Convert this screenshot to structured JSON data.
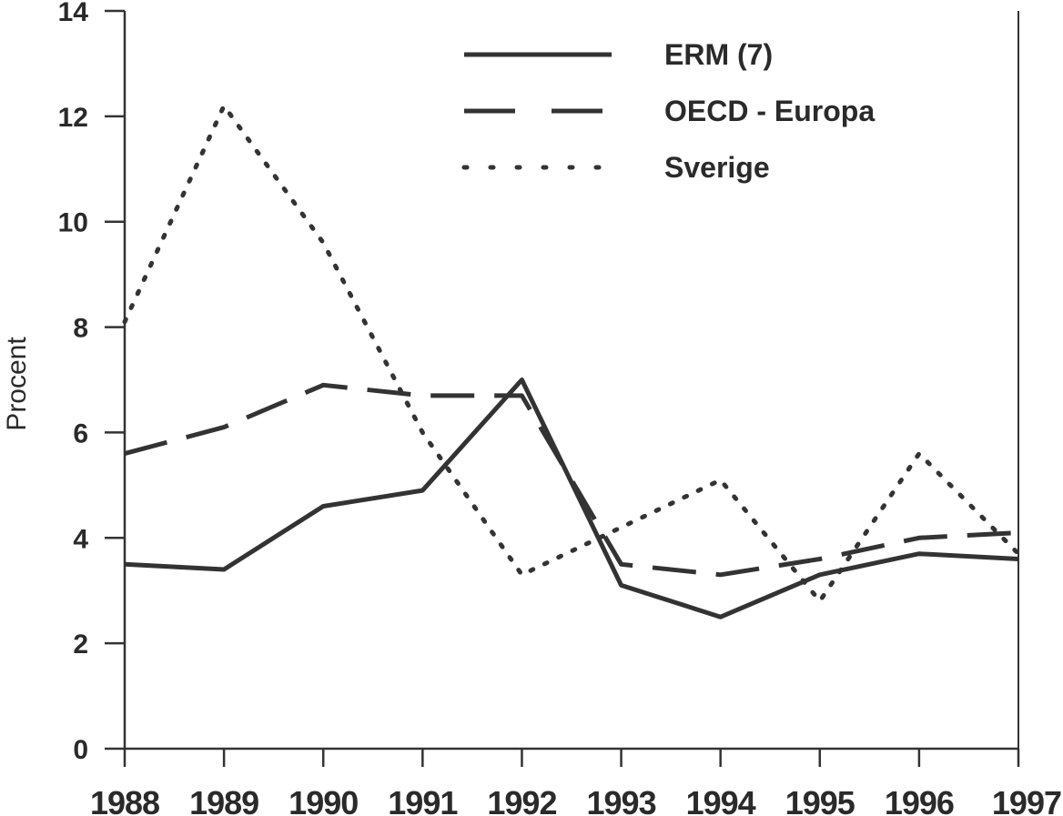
{
  "chart_data": {
    "type": "line",
    "title": "",
    "xlabel": "",
    "ylabel": "Procent",
    "ylim": [
      0,
      14
    ],
    "yticks": [
      "0",
      "2",
      "4",
      "6",
      "8",
      "10",
      "12",
      "14"
    ],
    "x": [
      "1988",
      "1989",
      "1990",
      "1991",
      "1992",
      "1993",
      "1994",
      "1995",
      "1996",
      "1997"
    ],
    "series": [
      {
        "name": "ERM (7)",
        "style": "solid",
        "values": [
          3.5,
          3.4,
          4.6,
          4.9,
          7.0,
          3.1,
          2.5,
          3.3,
          3.7,
          3.6
        ]
      },
      {
        "name": "OECD - Europa",
        "style": "dashed",
        "values": [
          5.6,
          6.1,
          6.9,
          6.7,
          6.7,
          3.5,
          3.3,
          3.6,
          4.0,
          4.1
        ]
      },
      {
        "name": "Sverige",
        "style": "dotted",
        "values": [
          8.1,
          12.2,
          9.6,
          6.0,
          3.3,
          4.2,
          5.1,
          2.8,
          5.6,
          3.7
        ]
      }
    ],
    "legend_position": "top-right",
    "grid": false,
    "line_color": "#333333"
  }
}
